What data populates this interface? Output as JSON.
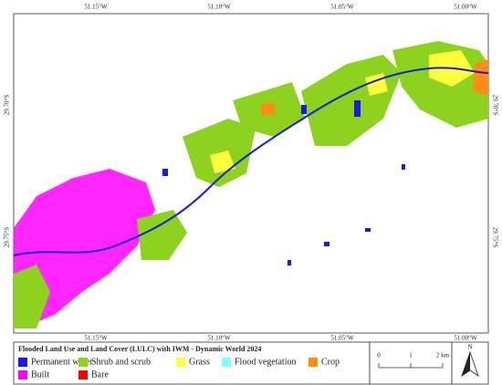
{
  "map": {
    "x_labels_top": [
      "51.15°W",
      "51.10°W",
      "51.05°W",
      "51.00°W"
    ],
    "x_labels_bottom": [
      "51.15°W",
      "51.10°W",
      "51.05°W",
      "51.00°W"
    ],
    "y_labels_left": [
      "29.70°S",
      "29.75°S"
    ],
    "y_labels_right": [
      "29.70°S",
      "29.75°S"
    ]
  },
  "legend": {
    "title": "Flooded Land Use and Land Cover (LULC) with IWM - Dynamic World 2024",
    "items": [
      {
        "label": "Permanent water",
        "color": "#1a1ae6"
      },
      {
        "label": "Shrub and scrub",
        "color": "#8cd21e"
      },
      {
        "label": "Grass",
        "color": "#ffff3c"
      },
      {
        "label": "Flood vegetation",
        "color": "#80ffff"
      },
      {
        "label": "Crop",
        "color": "#ff8c14"
      },
      {
        "label": "Built",
        "color": "#ff00ff"
      },
      {
        "label": "Bare",
        "color": "#ff0000"
      }
    ]
  },
  "scale_bar": {
    "labels": [
      "0",
      "1",
      "2 km"
    ]
  },
  "north_arrow": "N"
}
